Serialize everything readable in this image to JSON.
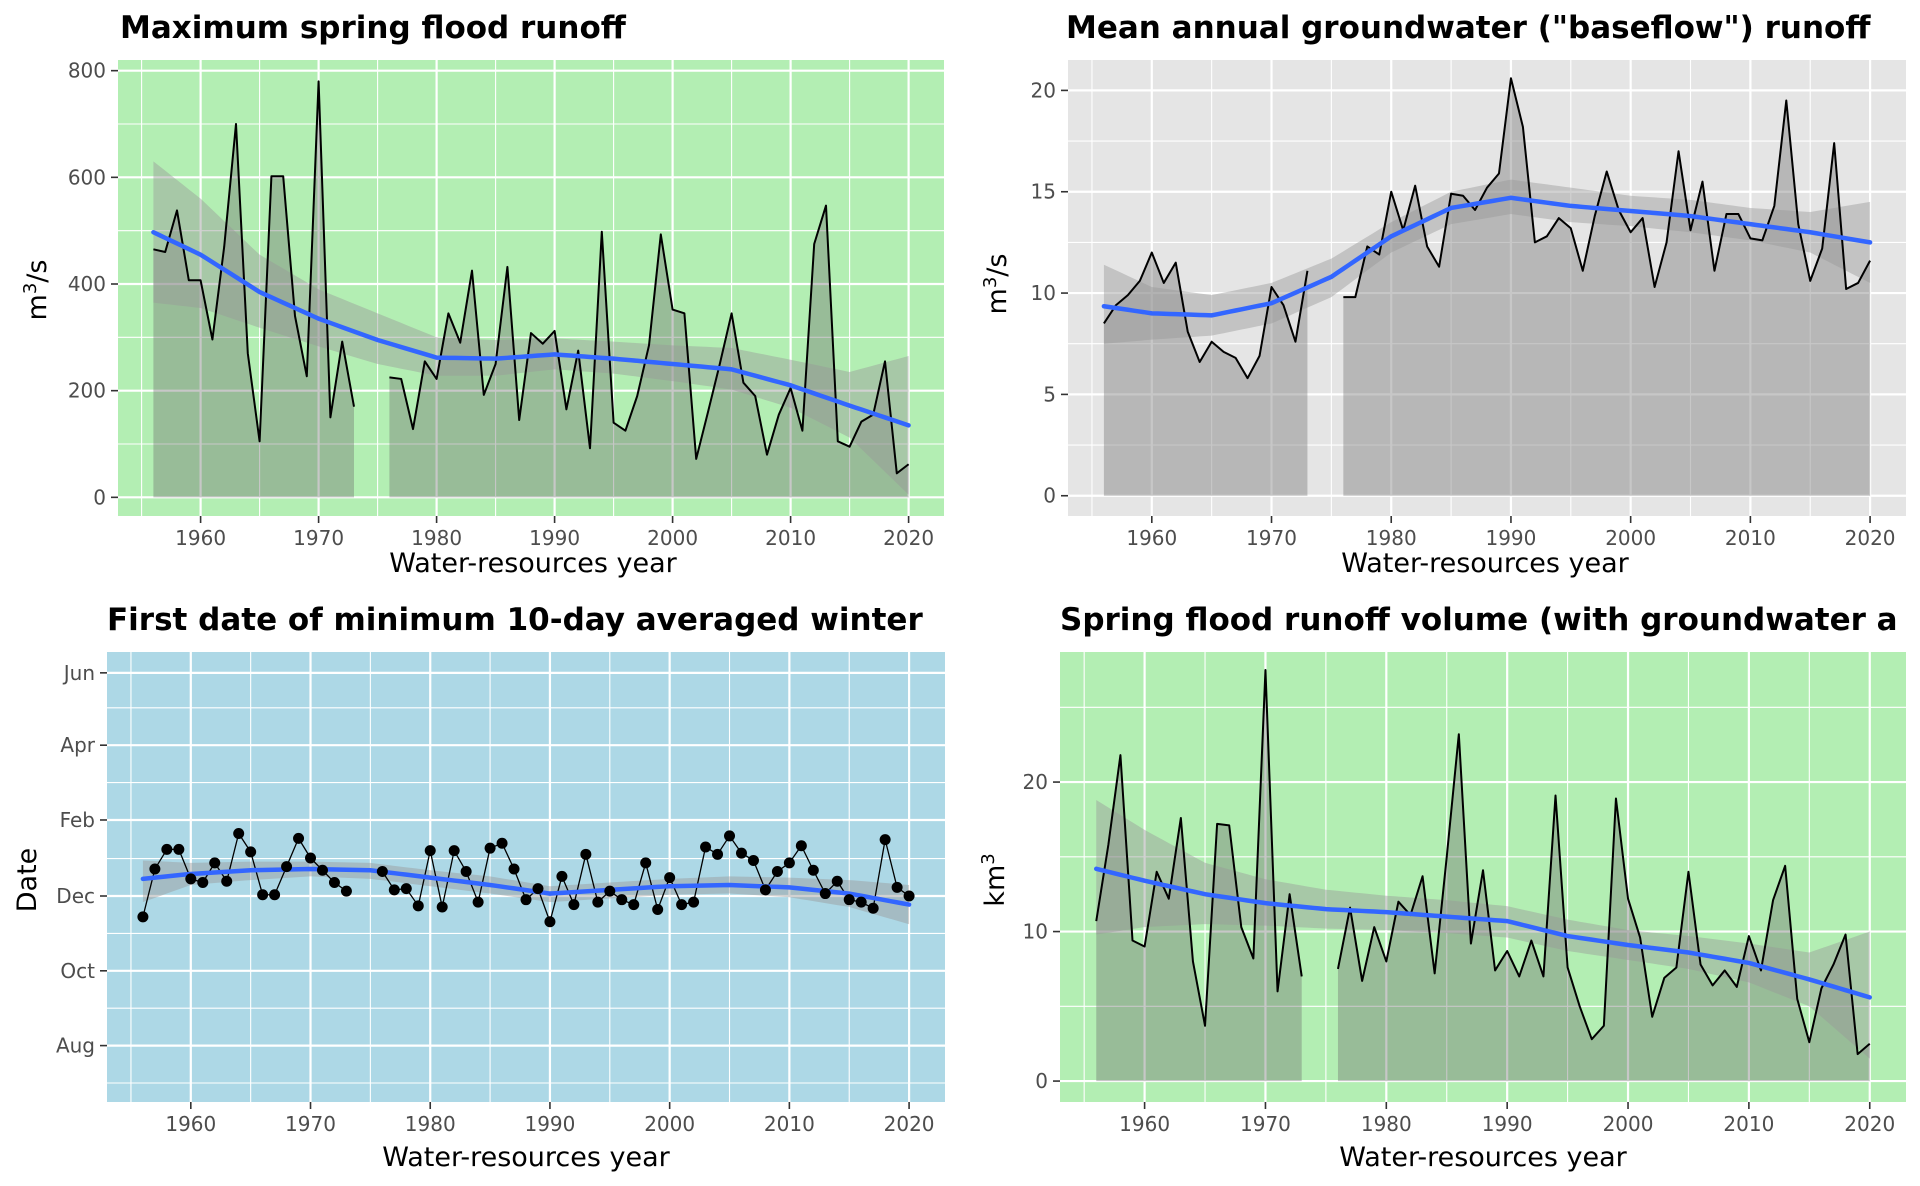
{
  "panel_colors": {
    "green": "#b3eeb3",
    "grey": "#e5e5e5",
    "blue": "#add8e6",
    "smooth": "#3366ff",
    "band": "#9a9a9a",
    "area": "#6b6b6b"
  },
  "chart_data": [
    {
      "id": "p1",
      "type": "area",
      "title": "Maximum spring flood runoff",
      "xlabel": "Water-resources year",
      "ylabel_base": "m",
      "ylabel_sup": "3",
      "ylabel_tail": "/s",
      "xlim": [
        1953,
        2023
      ],
      "ylim": [
        -35,
        820
      ],
      "xticks": [
        1960,
        1970,
        1980,
        1990,
        2000,
        2010,
        2020
      ],
      "yticks": [
        0,
        200,
        400,
        600,
        800
      ],
      "background": "#b3eeb3",
      "series": [
        {
          "x": [
            1956,
            1957,
            1958,
            1959,
            1960,
            1961,
            1962,
            1963,
            1964,
            1965,
            1966,
            1967,
            1968,
            1969,
            1970,
            1971,
            1972,
            1973
          ],
          "y": [
            465,
            460,
            538,
            407,
            407,
            296,
            470,
            700,
            270,
            105,
            602,
            602,
            340,
            227,
            780,
            150,
            292,
            170
          ]
        },
        {
          "x": [
            1976,
            1977,
            1978,
            1979,
            1980,
            1981,
            1982,
            1983,
            1984,
            1985,
            1986,
            1987,
            1988,
            1989,
            1990,
            1991,
            1992,
            1993,
            1994,
            1995,
            1996,
            1997,
            1998,
            1999,
            2000,
            2001,
            2002,
            2003,
            2004,
            2005,
            2006,
            2007,
            2008,
            2009,
            2010,
            2011,
            2012,
            2013,
            2014,
            2015,
            2016,
            2017,
            2018,
            2019,
            2020
          ],
          "y": [
            225,
            222,
            128,
            255,
            222,
            345,
            290,
            425,
            192,
            250,
            432,
            145,
            308,
            288,
            312,
            165,
            275,
            92,
            498,
            140,
            125,
            190,
            285,
            493,
            352,
            345,
            72,
            160,
            250,
            345,
            215,
            190,
            80,
            155,
            205,
            125,
            475,
            547,
            105,
            95,
            142,
            155,
            255,
            45,
            62
          ]
        }
      ],
      "smooth": {
        "x": [
          1956,
          1960,
          1965,
          1970,
          1975,
          1980,
          1985,
          1990,
          1995,
          2000,
          2005,
          2010,
          2015,
          2020
        ],
        "y": [
          497,
          455,
          385,
          335,
          295,
          262,
          260,
          268,
          260,
          250,
          240,
          210,
          172,
          135
        ],
        "upper": [
          630,
          560,
          455,
          390,
          345,
          300,
          295,
          298,
          292,
          285,
          280,
          258,
          235,
          265
        ],
        "lower": [
          365,
          355,
          318,
          283,
          250,
          228,
          228,
          240,
          232,
          218,
          202,
          168,
          112,
          5
        ]
      }
    },
    {
      "id": "p2",
      "type": "area",
      "title": "Mean annual groundwater (\"baseflow\") runoff",
      "xlabel": "Water-resources year",
      "ylabel_base": "m",
      "ylabel_sup": "3",
      "ylabel_tail": "/s",
      "xlim": [
        1953,
        2023
      ],
      "ylim": [
        -1,
        21.5
      ],
      "xticks": [
        1960,
        1970,
        1980,
        1990,
        2000,
        2010,
        2020
      ],
      "yticks": [
        0,
        5,
        10,
        15,
        20
      ],
      "background": "#e5e5e5",
      "series": [
        {
          "x": [
            1956,
            1957,
            1958,
            1959,
            1960,
            1961,
            1962,
            1963,
            1964,
            1965,
            1966,
            1967,
            1968,
            1969,
            1970,
            1971,
            1972,
            1973
          ],
          "y": [
            8.5,
            9.4,
            9.9,
            10.6,
            12.0,
            10.5,
            11.5,
            8.1,
            6.6,
            7.6,
            7.1,
            6.8,
            5.8,
            6.9,
            10.3,
            9.4,
            7.6,
            11.1
          ]
        },
        {
          "x": [
            1976,
            1977,
            1978,
            1979,
            1980,
            1981,
            1982,
            1983,
            1984,
            1985,
            1986,
            1987,
            1988,
            1989,
            1990,
            1991,
            1992,
            1993,
            1994,
            1995,
            1996,
            1997,
            1998,
            1999,
            2000,
            2001,
            2002,
            2003,
            2004,
            2005,
            2006,
            2007,
            2008,
            2009,
            2010,
            2011,
            2012,
            2013,
            2014,
            2015,
            2016,
            2017,
            2018,
            2019,
            2020
          ],
          "y": [
            9.8,
            9.8,
            12.3,
            11.9,
            15.0,
            13.1,
            15.3,
            12.3,
            11.3,
            14.9,
            14.8,
            14.1,
            15.2,
            15.9,
            20.6,
            18.2,
            12.5,
            12.8,
            13.7,
            13.2,
            11.1,
            13.8,
            16.0,
            14.1,
            13.0,
            13.7,
            10.3,
            12.5,
            17.0,
            13.1,
            15.5,
            11.1,
            13.9,
            13.9,
            12.7,
            12.6,
            14.3,
            19.5,
            13.4,
            10.6,
            12.2,
            17.4,
            10.2,
            10.5,
            11.6
          ]
        }
      ],
      "smooth": {
        "x": [
          1956,
          1960,
          1965,
          1970,
          1975,
          1980,
          1985,
          1990,
          1995,
          2000,
          2005,
          2010,
          2015,
          2020
        ],
        "y": [
          9.35,
          9.0,
          8.9,
          9.5,
          10.8,
          12.8,
          14.2,
          14.7,
          14.3,
          14.05,
          13.8,
          13.4,
          13.0,
          12.5
        ],
        "upper": [
          11.4,
          10.3,
          9.9,
          10.5,
          11.7,
          13.5,
          15.0,
          15.6,
          15.2,
          14.8,
          14.6,
          14.2,
          14.0,
          14.5
        ],
        "lower": [
          7.5,
          7.7,
          7.9,
          8.5,
          9.8,
          12.0,
          13.4,
          13.9,
          13.5,
          13.3,
          13.0,
          12.6,
          12.0,
          10.5
        ]
      }
    },
    {
      "id": "p3",
      "type": "line",
      "title": "First date of minimum 10-day averaged winter",
      "xlabel": "Water-resources year",
      "ylabel": "Date",
      "xlim": [
        1953,
        2023
      ],
      "ylim": [
        -15,
        352
      ],
      "xticks": [
        1960,
        1970,
        1980,
        1990,
        2000,
        2010,
        2020
      ],
      "yticks": [
        31,
        92,
        153,
        215,
        276,
        335
      ],
      "ytick_labels": [
        "Aug",
        "Oct",
        "Dec",
        "Feb",
        "Apr",
        "Jun"
      ],
      "background": "#add8e6",
      "series": [
        {
          "x": [
            1956,
            1957,
            1958,
            1959,
            1960,
            1961,
            1962,
            1963,
            1964,
            1965,
            1966,
            1967,
            1968,
            1969,
            1970,
            1971,
            1972,
            1973
          ],
          "y": [
            136,
            175,
            191,
            191,
            167,
            164,
            180,
            165,
            204,
            189,
            154,
            154,
            177,
            200,
            184,
            174,
            164,
            157
          ]
        },
        {
          "x": [
            1976,
            1977,
            1978,
            1979,
            1980,
            1981,
            1982,
            1983,
            1984,
            1985,
            1986,
            1987,
            1988,
            1989,
            1990,
            1991,
            1992,
            1993,
            1994,
            1995,
            1996,
            1997,
            1998,
            1999,
            2000,
            2001,
            2002,
            2003,
            2004,
            2005,
            2006,
            2007,
            2008,
            2009,
            2010,
            2011,
            2012,
            2013,
            2014,
            2015,
            2016,
            2017,
            2018,
            2019,
            2020
          ],
          "y": [
            173,
            158,
            159,
            145,
            190,
            144,
            190,
            173,
            148,
            192,
            196,
            175,
            150,
            159,
            132,
            169,
            146,
            187,
            148,
            157,
            150,
            146,
            180,
            142,
            168,
            146,
            148,
            193,
            187,
            202,
            188,
            182,
            158,
            173,
            180,
            194,
            174,
            155,
            165,
            150,
            148,
            143,
            199,
            160,
            153
          ]
        }
      ],
      "smooth": {
        "x": [
          1956,
          1960,
          1965,
          1970,
          1975,
          1980,
          1985,
          1990,
          1995,
          2000,
          2005,
          2010,
          2015,
          2020
        ],
        "y": [
          167,
          171,
          174,
          175,
          174,
          168,
          162,
          155,
          158,
          161,
          162,
          160,
          155,
          146
        ],
        "upper": [
          182,
          180,
          181,
          181,
          180,
          174,
          169,
          161,
          164,
          167,
          169,
          168,
          166,
          162
        ],
        "lower": [
          148,
          162,
          166,
          169,
          167,
          161,
          155,
          148,
          151,
          154,
          155,
          152,
          144,
          130
        ]
      }
    },
    {
      "id": "p4",
      "type": "area",
      "title": "Spring flood runoff volume (with groundwater a",
      "xlabel": "Water-resources year",
      "ylabel_base": "km",
      "ylabel_sup": "3",
      "ylabel_tail": "",
      "xlim": [
        1953,
        2023
      ],
      "ylim": [
        -1.4,
        28.7
      ],
      "xticks": [
        1960,
        1970,
        1980,
        1990,
        2000,
        2010,
        2020
      ],
      "yticks": [
        0,
        10,
        20
      ],
      "background": "#b3eeb3",
      "series": [
        {
          "x": [
            1956,
            1957,
            1958,
            1959,
            1960,
            1961,
            1962,
            1963,
            1964,
            1965,
            1966,
            1967,
            1968,
            1969,
            1970,
            1971,
            1972,
            1973
          ],
          "y": [
            10.7,
            15.8,
            21.8,
            9.4,
            9.0,
            14.0,
            12.2,
            17.6,
            8.0,
            3.7,
            17.2,
            17.1,
            10.3,
            8.2,
            27.5,
            6.0,
            12.5,
            7.0
          ]
        },
        {
          "x": [
            1976,
            1977,
            1978,
            1979,
            1980,
            1981,
            1982,
            1983,
            1984,
            1985,
            1986,
            1987,
            1988,
            1989,
            1990,
            1991,
            1992,
            1993,
            1994,
            1995,
            1996,
            1997,
            1998,
            1999,
            2000,
            2001,
            2002,
            2003,
            2004,
            2005,
            2006,
            2007,
            2008,
            2009,
            2010,
            2011,
            2012,
            2013,
            2014,
            2015,
            2016,
            2017,
            2018,
            2019,
            2020
          ],
          "y": [
            7.5,
            11.6,
            6.7,
            10.3,
            8.0,
            12.0,
            11.1,
            13.7,
            7.2,
            15.0,
            23.2,
            9.2,
            14.1,
            7.4,
            8.7,
            7.0,
            9.4,
            7.0,
            19.1,
            7.6,
            5.0,
            2.8,
            3.7,
            18.9,
            12.2,
            9.6,
            4.3,
            6.9,
            7.6,
            14.0,
            7.8,
            6.4,
            7.4,
            6.3,
            9.7,
            7.4,
            12.1,
            14.4,
            5.5,
            2.6,
            6.2,
            7.8,
            9.8,
            1.8,
            2.5
          ]
        }
      ],
      "smooth": {
        "x": [
          1956,
          1960,
          1965,
          1970,
          1975,
          1980,
          1985,
          1990,
          1995,
          2000,
          2005,
          2010,
          2015,
          2020
        ],
        "y": [
          14.2,
          13.4,
          12.5,
          11.9,
          11.5,
          11.3,
          11.0,
          10.7,
          9.7,
          9.1,
          8.6,
          7.9,
          6.8,
          5.6
        ],
        "upper": [
          18.8,
          16.8,
          14.6,
          13.5,
          12.8,
          12.4,
          12.1,
          11.7,
          10.8,
          10.1,
          9.7,
          9.2,
          8.6,
          10.0
        ],
        "lower": [
          9.8,
          10.3,
          10.5,
          10.4,
          10.2,
          10.1,
          9.9,
          9.6,
          8.7,
          8.1,
          7.5,
          6.6,
          5.0,
          1.5
        ]
      }
    }
  ]
}
